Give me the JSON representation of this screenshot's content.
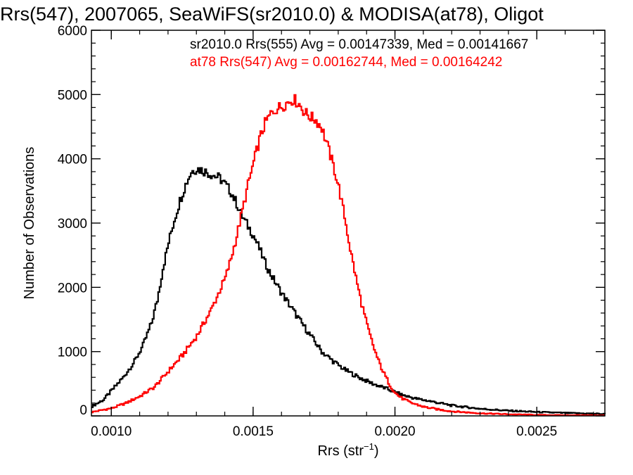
{
  "chart_data": {
    "type": "line",
    "title": "Rrs(547), 2007065, SeaWiFS(sr2010.0) & MODISA(at78), Oligot",
    "xlabel": "Rrs (str",
    "xlabel_sup": "−1",
    "xlabel_close": ")",
    "ylabel": "Number of Observations",
    "xlim": [
      0.00093,
      0.00274
    ],
    "ylim": [
      0,
      6000
    ],
    "xticks": [
      "0.0010",
      "0.0015",
      "0.0020",
      "0.0025"
    ],
    "yticks": [
      "0",
      "1000",
      "2000",
      "3000",
      "4000",
      "5000",
      "6000"
    ],
    "step": true,
    "grid": false,
    "legend_position": "top",
    "series": [
      {
        "name": "sr2010.0 Rrs(555) Avg = 0.00147339, Med = 0.00141667",
        "color": "#000000",
        "x": [
          0.00093,
          0.00097,
          0.001,
          0.00104,
          0.00108,
          0.00111,
          0.00114,
          0.00116,
          0.00118,
          0.0012,
          0.00122,
          0.00124,
          0.00126,
          0.00128,
          0.0013,
          0.00132,
          0.00134,
          0.00136,
          0.00138,
          0.0014,
          0.00142,
          0.00144,
          0.00146,
          0.00148,
          0.0015,
          0.00152,
          0.00154,
          0.00156,
          0.00158,
          0.0016,
          0.00163,
          0.00166,
          0.0017,
          0.00174,
          0.00178,
          0.00182,
          0.00187,
          0.00192,
          0.00197,
          0.00202,
          0.00207,
          0.00212,
          0.0022,
          0.0023,
          0.0024,
          0.0025,
          0.0026,
          0.00274
        ],
        "y": [
          150,
          250,
          400,
          600,
          850,
          1100,
          1450,
          1800,
          2300,
          2700,
          3050,
          3350,
          3600,
          3800,
          3850,
          3820,
          3780,
          3740,
          3700,
          3600,
          3480,
          3300,
          3100,
          2950,
          2800,
          2600,
          2380,
          2200,
          2050,
          1900,
          1700,
          1500,
          1250,
          1000,
          850,
          720,
          600,
          500,
          420,
          330,
          270,
          230,
          160,
          110,
          80,
          60,
          45,
          30
        ]
      },
      {
        "name": "at78 Rrs(547) Avg = 0.00162744, Med = 0.00164242",
        "color": "#ff0000",
        "x": [
          0.00093,
          0.001,
          0.00105,
          0.0011,
          0.00115,
          0.0012,
          0.00125,
          0.0013,
          0.00135,
          0.0014,
          0.00142,
          0.00144,
          0.00146,
          0.00148,
          0.0015,
          0.00152,
          0.00154,
          0.00156,
          0.00158,
          0.0016,
          0.00162,
          0.00164,
          0.00166,
          0.00168,
          0.0017,
          0.00172,
          0.00174,
          0.00176,
          0.00178,
          0.0018,
          0.00182,
          0.00184,
          0.00186,
          0.00188,
          0.0019,
          0.00192,
          0.00194,
          0.00196,
          0.00198,
          0.002,
          0.00202,
          0.00205,
          0.0021,
          0.00215,
          0.0022,
          0.0023,
          0.0024,
          0.0025,
          0.0026,
          0.00274
        ],
        "y": [
          60,
          120,
          200,
          310,
          450,
          700,
          950,
          1250,
          1650,
          2150,
          2450,
          2800,
          3200,
          3600,
          3950,
          4300,
          4550,
          4700,
          4780,
          4820,
          4880,
          4930,
          4850,
          4720,
          4650,
          4600,
          4480,
          4200,
          3900,
          3550,
          3100,
          2600,
          2150,
          1750,
          1400,
          1100,
          850,
          650,
          480,
          350,
          280,
          210,
          140,
          100,
          70,
          40,
          25,
          15,
          10,
          8
        ]
      }
    ]
  }
}
